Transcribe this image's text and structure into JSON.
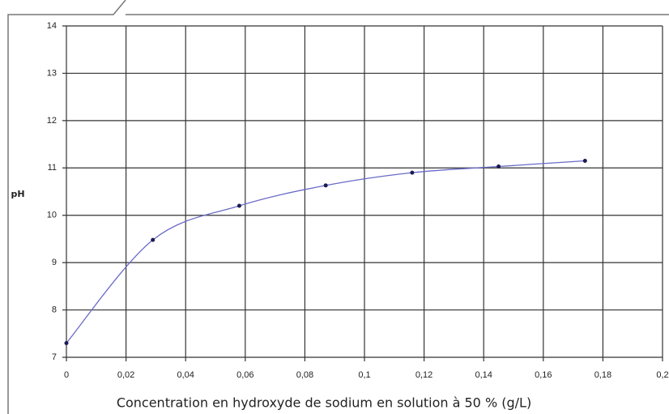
{
  "chart_data": {
    "type": "line",
    "x_label": "Concentration en hydroxyde de sodium en solution à 50 % (g/L)",
    "y_label": "pH",
    "x": [
      0,
      0.029,
      0.058,
      0.087,
      0.116,
      0.145,
      0.174
    ],
    "series": [
      {
        "color": "#6a6ac8",
        "values": [
          7.3,
          9.48,
          10.2,
          10.63,
          10.9,
          11.03,
          11.15
        ]
      }
    ],
    "xlim": [
      0,
      0.2
    ],
    "xticks": [
      0,
      {
        "value": 0.02,
        "label": "0,02"
      },
      {
        "value": 0.04,
        "label": "0,04"
      },
      {
        "value": 0.06,
        "label": "0,06"
      },
      {
        "value": 0.08,
        "label": "0,08"
      },
      {
        "value": 0.1,
        "label": "0,1"
      },
      {
        "value": 0.12,
        "label": "0,12"
      },
      {
        "value": 0.14,
        "label": "0,14"
      },
      {
        "value": 0.16,
        "label": "0,16"
      },
      {
        "value": 0.18,
        "label": "0,18"
      },
      {
        "value": 0.2,
        "label": "0,2"
      }
    ],
    "ylim": [
      7,
      14
    ],
    "yticks": [
      7,
      8,
      9,
      10,
      11,
      12,
      13,
      14
    ],
    "grid": true
  }
}
